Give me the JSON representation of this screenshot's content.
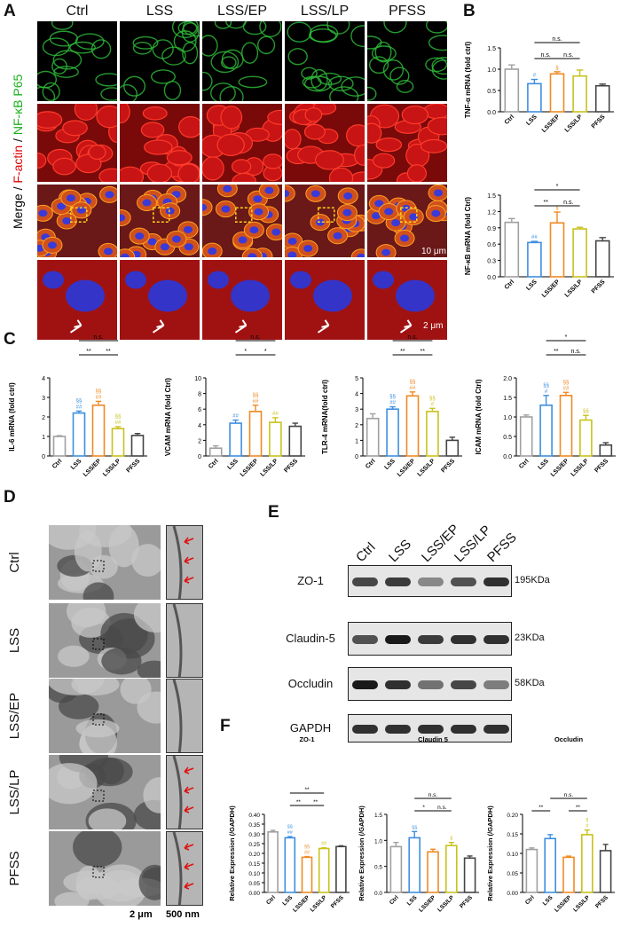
{
  "panels": {
    "A": {
      "label": "A",
      "columns": [
        "Ctrl",
        "LSS",
        "LSS/EP",
        "LSS/LP",
        "PFSS"
      ],
      "side_label": {
        "merge": "Merge",
        "sep1": " / ",
        "factin": "F-actin",
        "sep2": " / ",
        "nfkb": "NF-κB P65"
      },
      "scale_small": "10 μm",
      "scale_large": "2 μm"
    },
    "B": {
      "label": "B"
    },
    "C": {
      "label": "C"
    },
    "D": {
      "label": "D",
      "rows": [
        "Ctrl",
        "LSS",
        "LSS/EP",
        "LSS/LP",
        "PFSS"
      ],
      "scale_left": "2 μm",
      "scale_right": "500 nm"
    },
    "E": {
      "label": "E",
      "columns": [
        "Ctrl",
        "LSS",
        "LSS/EP",
        "LSS/LP",
        "PFSS"
      ],
      "bands": [
        {
          "name": "ZO-1",
          "size": "195KDa",
          "intensity": [
            0.75,
            0.8,
            0.45,
            0.7,
            0.85
          ]
        },
        {
          "name": "Claudin-5",
          "size": "23KDa",
          "intensity": [
            0.7,
            0.95,
            0.8,
            0.85,
            0.85
          ]
        },
        {
          "name": "Occludin",
          "size": "58KDa",
          "intensity": [
            0.95,
            0.85,
            0.55,
            0.75,
            0.5
          ]
        },
        {
          "name": "GAPDH",
          "size": "",
          "intensity": [
            0.85,
            0.85,
            0.85,
            0.85,
            0.85
          ]
        }
      ]
    },
    "F": {
      "label": "F"
    }
  },
  "colors": {
    "Ctrl": "#a0a0a0",
    "LSS": "#3d8fe0",
    "LSS/EP": "#f08a24",
    "LSS/LP": "#c9c21c",
    "PFSS": "#444444"
  },
  "chart_data": [
    {
      "id": "B1",
      "type": "bar",
      "categories": [
        "Ctrl",
        "LSS",
        "LSS/EP",
        "LSS/LP",
        "PFSS"
      ],
      "values": [
        1.0,
        0.66,
        0.89,
        0.84,
        0.61
      ],
      "errors": [
        0.1,
        0.1,
        0.05,
        0.14,
        0.04
      ],
      "ylabel": "TNF-α mRNA (fold ctrl)",
      "ylim": [
        0,
        1.5
      ],
      "yticks": [
        "0.0",
        "0.5",
        "1.0",
        "1.5"
      ],
      "marks": [
        [],
        [
          "#"
        ],
        [
          "§"
        ],
        [],
        []
      ],
      "brackets": [
        {
          "from": 2,
          "to": 4,
          "text": "n.s.",
          "level": 0
        },
        {
          "from": 2,
          "to": 3,
          "text": "n.s.",
          "level": 1
        },
        {
          "from": 3,
          "to": 4,
          "text": "n.s.",
          "level": 1
        }
      ]
    },
    {
      "id": "B2",
      "type": "bar",
      "categories": [
        "Ctrl",
        "LSS",
        "LSS/EP",
        "LSS/LP",
        "PFSS"
      ],
      "values": [
        1.0,
        0.63,
        0.99,
        0.88,
        0.66
      ],
      "errors": [
        0.07,
        0.02,
        0.2,
        0.03,
        0.06
      ],
      "ylabel": "NF-κB mRNA (fold Ctrl)",
      "ylim": [
        0,
        1.5
      ],
      "yticks": [
        "0.0",
        "0.3",
        "0.6",
        "0.9",
        "1.2",
        "1.5"
      ],
      "marks": [
        [],
        [
          "##"
        ],
        [
          "§"
        ],
        [],
        []
      ],
      "brackets": [
        {
          "from": 2,
          "to": 4,
          "text": "*",
          "level": 0
        },
        {
          "from": 2,
          "to": 3,
          "text": "**",
          "level": 1
        },
        {
          "from": 3,
          "to": 4,
          "text": "n.s.",
          "level": 1
        }
      ]
    },
    {
      "id": "C1",
      "type": "bar",
      "categories": [
        "Ctrl",
        "LSS",
        "LSS/EP",
        "LSS/LP",
        "PFSS"
      ],
      "values": [
        1.0,
        2.2,
        2.6,
        1.4,
        1.05
      ],
      "errors": [
        0.04,
        0.1,
        0.2,
        0.1,
        0.1
      ],
      "ylabel": "IL-6 mRNA (fold ctrl)",
      "ylim": [
        0,
        4
      ],
      "yticks": [
        "0",
        "1",
        "2",
        "3",
        "4"
      ],
      "marks": [
        [],
        [
          "§§",
          "##"
        ],
        [
          "§§",
          "##"
        ],
        [
          "§§",
          "##"
        ],
        []
      ],
      "brackets": [
        {
          "from": 2,
          "to": 4,
          "text": "n.s.",
          "level": 0
        },
        {
          "from": 2,
          "to": 3,
          "text": "**",
          "level": 1
        },
        {
          "from": 3,
          "to": 4,
          "text": "**",
          "level": 1
        }
      ]
    },
    {
      "id": "C2",
      "type": "bar",
      "categories": [
        "Ctrl",
        "LSS",
        "LSS/EP",
        "LSS/LP",
        "PFSS"
      ],
      "values": [
        1.0,
        4.2,
        5.7,
        4.3,
        3.8
      ],
      "errors": [
        0.3,
        0.4,
        0.8,
        0.6,
        0.4
      ],
      "ylabel": "VCAM mRNA (fold Ctrl)",
      "ylim": [
        0,
        10
      ],
      "yticks": [
        "0",
        "2",
        "4",
        "6",
        "8",
        "10"
      ],
      "marks": [
        [],
        [
          "##"
        ],
        [
          "§§",
          "##"
        ],
        [
          "##"
        ],
        []
      ],
      "brackets": [
        {
          "from": 2,
          "to": 4,
          "text": "n.s.",
          "level": 0
        },
        {
          "from": 2,
          "to": 3,
          "text": "*",
          "level": 1
        },
        {
          "from": 3,
          "to": 4,
          "text": "*",
          "level": 1
        }
      ]
    },
    {
      "id": "C3",
      "type": "bar",
      "categories": [
        "Ctrl",
        "LSS",
        "LSS/EP",
        "LSS/LP",
        "PFSS"
      ],
      "values": [
        2.4,
        3.0,
        3.85,
        2.85,
        1.0
      ],
      "errors": [
        0.3,
        0.15,
        0.25,
        0.2,
        0.2
      ],
      "ylabel": "TLR-4 mRNA(fold ctrl)",
      "ylim": [
        0,
        5
      ],
      "yticks": [
        "0",
        "1",
        "2",
        "3",
        "4",
        "5"
      ],
      "marks": [
        [],
        [
          "§§",
          "##"
        ],
        [
          "§§",
          "##"
        ],
        [
          "§§",
          "#"
        ],
        []
      ],
      "brackets": [
        {
          "from": 2,
          "to": 4,
          "text": "n.s.",
          "level": 0
        },
        {
          "from": 2,
          "to": 3,
          "text": "**",
          "level": 1
        },
        {
          "from": 3,
          "to": 4,
          "text": "**",
          "level": 1
        }
      ]
    },
    {
      "id": "C4",
      "type": "bar",
      "categories": [
        "Ctrl",
        "LSS",
        "LSS/EP",
        "LSS/LP",
        "PFSS"
      ],
      "values": [
        1.0,
        1.3,
        1.55,
        0.92,
        0.28
      ],
      "errors": [
        0.05,
        0.25,
        0.08,
        0.12,
        0.06
      ],
      "ylabel": "ICAM mRNA (fold Ctrl)",
      "ylim": [
        0,
        2.0
      ],
      "yticks": [
        "0.0",
        "0.5",
        "1.0",
        "1.5",
        "2.0"
      ],
      "marks": [
        [],
        [
          "§§",
          "#"
        ],
        [
          "§§",
          "##"
        ],
        [
          "§§"
        ],
        []
      ],
      "brackets": [
        {
          "from": 2,
          "to": 4,
          "text": "*",
          "level": 0
        },
        {
          "from": 2,
          "to": 3,
          "text": "**",
          "level": 1
        },
        {
          "from": 3,
          "to": 4,
          "text": "n.s.",
          "level": 1
        }
      ]
    },
    {
      "id": "F1",
      "type": "bar",
      "title": "ZO-1",
      "categories": [
        "Ctrl",
        "LSS",
        "LSS/EP",
        "LSS/LP",
        "PFSS"
      ],
      "values": [
        0.31,
        0.28,
        0.18,
        0.225,
        0.235
      ],
      "errors": [
        0.008,
        0.006,
        0.004,
        0.004,
        0.004
      ],
      "ylabel": "Relative Expression (/GAPDH)",
      "ylim": [
        0,
        0.4
      ],
      "yticks": [
        "0.00",
        "0.05",
        "0.10",
        "0.15",
        "0.20",
        "0.25",
        "0.30",
        "0.35",
        "0.40"
      ],
      "marks": [
        [],
        [
          "§§",
          "##"
        ],
        [
          "§§",
          "##"
        ],
        [
          "##"
        ],
        []
      ],
      "brackets": [
        {
          "from": 2,
          "to": 4,
          "text": "**",
          "level": 0
        },
        {
          "from": 2,
          "to": 3,
          "text": "**",
          "level": 1
        },
        {
          "from": 3,
          "to": 4,
          "text": "**",
          "level": 1
        }
      ]
    },
    {
      "id": "F2",
      "type": "bar",
      "title": "Claudin 5",
      "categories": [
        "Ctrl",
        "LSS",
        "LSS/EP",
        "LSS/LP",
        "PFSS"
      ],
      "values": [
        0.88,
        1.05,
        0.78,
        0.9,
        0.66
      ],
      "errors": [
        0.08,
        0.12,
        0.05,
        0.06,
        0.04
      ],
      "ylabel": "Relative Expression (/GAPDH)",
      "ylim": [
        0,
        1.5
      ],
      "yticks": [
        "0.0",
        "0.5",
        "1.0",
        "1.5"
      ],
      "marks": [
        [],
        [
          "§§"
        ],
        [],
        [
          "§"
        ],
        []
      ],
      "brackets": [
        {
          "from": 2,
          "to": 4,
          "text": "n.s.",
          "level": 0
        },
        {
          "from": 2,
          "to": 3,
          "text": "*",
          "level": 1
        },
        {
          "from": 3,
          "to": 4,
          "text": "n.s.",
          "level": 1
        }
      ]
    },
    {
      "id": "F3",
      "type": "bar",
      "title": "Occludin",
      "categories": [
        "Ctrl",
        "LSS",
        "LSS/EP",
        "LSS/LP",
        "PFSS"
      ],
      "values": [
        0.11,
        0.138,
        0.09,
        0.148,
        0.107
      ],
      "errors": [
        0.004,
        0.01,
        0.003,
        0.012,
        0.016
      ],
      "ylabel": "Relative Expression (/GAPDH)",
      "ylim": [
        0,
        0.2
      ],
      "yticks": [
        "0.00",
        "0.05",
        "0.10",
        "0.15",
        "0.20"
      ],
      "marks": [
        [],
        [],
        [],
        [
          "§",
          "#"
        ],
        []
      ],
      "brackets": [
        {
          "from": 2,
          "to": 4,
          "text": "n.s.",
          "level": 0
        },
        {
          "from": 1,
          "to": 2,
          "text": "**",
          "level": 1
        },
        {
          "from": 3,
          "to": 4,
          "text": "**",
          "level": 1
        }
      ]
    }
  ]
}
